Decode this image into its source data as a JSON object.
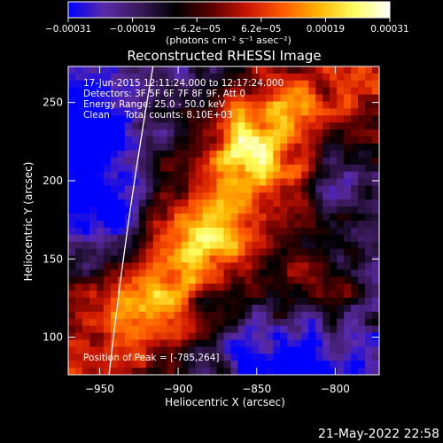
{
  "chart_data": {
    "type": "heatmap",
    "title": "Reconstructed RHESSI Image",
    "xlabel": "Heliocentric X (arcsec)",
    "ylabel": "Heliocentric Y (arcsec)",
    "xlim": [
      -970,
      -772
    ],
    "ylim": [
      76,
      273
    ],
    "x_ticks": [
      -950,
      -900,
      -850,
      -800
    ],
    "y_ticks": [
      100,
      150,
      200,
      250
    ],
    "x_tick_labels": [
      "-950",
      "-900",
      "-850",
      "-800"
    ],
    "y_tick_labels": [
      "100",
      "150",
      "200",
      "250"
    ],
    "colorbar": {
      "min": -0.00031,
      "max": 0.00031,
      "tick_labels": [
        "-0.00031",
        "-0.00019",
        "-6.2e-05",
        "6.2e-05",
        "0.00019",
        "0.00031"
      ],
      "unit_label": "(photons cm⁻² s⁻¹ asec⁻²)",
      "colormap": [
        "#0000ff",
        "#5a2aa8",
        "#3a1a5a",
        "#000000",
        "#5a0000",
        "#c81400",
        "#ff5a00",
        "#ffb400",
        "#ffff60",
        "#ffffff"
      ]
    },
    "annotations": [
      "17-Jun-2015 12:11:24.000 to 12:17:24.000",
      "Detectors: 3F 5F 6F 7F 8F 9F, Att 0",
      "Energy Range: 25.0 - 50.0 keV",
      "Clean     Total counts: 8.10E+03"
    ],
    "peak_label": "Position of Peak = [-785,264]",
    "peak_position": [
      -785,
      264
    ],
    "limb_curve": [
      [
        -944,
        76
      ],
      [
        -930,
        175
      ],
      [
        -916,
        273
      ]
    ]
  },
  "footer": {
    "timestamp": "21-May-2022 22:58"
  }
}
